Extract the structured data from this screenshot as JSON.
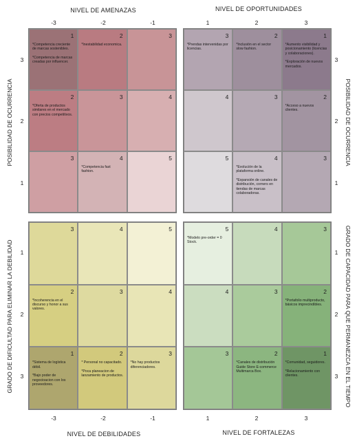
{
  "top_left_title": "NIVEL DE AMENAZAS",
  "top_right_title": "NIVEL DE OPORTUNIDADES",
  "bottom_left_title": "NIVEL DE DEBILIDADES",
  "bottom_right_title": "NIVEL DE FORTALEZAS",
  "left_upper_title": "POSIBILIDAD DE OCURRENCIA",
  "left_lower_title": "GRADO DE DIFICULTAD PARA ELIMINAR LA DEBILIDAD",
  "right_upper_title": "POSIBILIDAD DE OCURRENCIA",
  "right_lower_title": "GRADO DE CAPACIDAD PARA QUE PERMANEZCA EN EL TIEMPO",
  "ticks": {
    "top_left": [
      "-3",
      "-2",
      "-1"
    ],
    "top_right": [
      "1",
      "2",
      "3"
    ],
    "bottom_left": [
      "-3",
      "-2",
      "-1"
    ],
    "bottom_right": [
      "1",
      "2",
      "3"
    ],
    "left_upper": [
      "3",
      "2",
      "1"
    ],
    "left_lower": [
      "1",
      "2",
      "3"
    ],
    "right_upper": [
      "3",
      "2",
      "1"
    ],
    "right_lower": [
      "1",
      "2",
      "3"
    ]
  },
  "quadrants": {
    "amenazas": [
      {
        "n": "1",
        "bg": "#9b7276",
        "items": [
          "*Competencia creciente de marcas sostenibles.",
          "*Competencia de marcas creadas por influencer."
        ]
      },
      {
        "n": "2",
        "bg": "#b97b81",
        "items": [
          "*Inestabilidad economica."
        ]
      },
      {
        "n": "3",
        "bg": "#c89497",
        "items": []
      },
      {
        "n": "2",
        "bg": "#bc7d83",
        "items": [
          "*Oferta de productos similares en el mercado con precios competitivos."
        ]
      },
      {
        "n": "3",
        "bg": "#c99599",
        "items": []
      },
      {
        "n": "4",
        "bg": "#d7afb1",
        "items": []
      },
      {
        "n": "3",
        "bg": "#cf9fa3",
        "items": []
      },
      {
        "n": "4",
        "bg": "#d3b3b5",
        "items": [
          "*Competencia fast fashion."
        ]
      },
      {
        "n": "5",
        "bg": "#ead4d5",
        "items": []
      }
    ],
    "oportunidades": [
      {
        "n": "3",
        "bg": "#b3a5b1",
        "items": [
          "*Prendas intervenidas por licencias."
        ]
      },
      {
        "n": "2",
        "bg": "#9e8f9d",
        "items": [
          "*Inclusión en el sector slow fashion."
        ]
      },
      {
        "n": "1",
        "bg": "#8c7a8c",
        "items": [
          "*Aumento visibilidad y posicionamiento (licencias y colaboraciones).",
          "*Exploración de nuevos mercados."
        ]
      },
      {
        "n": "4",
        "bg": "#cfc7cd",
        "items": []
      },
      {
        "n": "3",
        "bg": "#b5a9b4",
        "items": []
      },
      {
        "n": "2",
        "bg": "#a294a1",
        "items": [
          "*Acceso a nuevos clientes."
        ]
      },
      {
        "n": "5",
        "bg": "#dedbde",
        "items": []
      },
      {
        "n": "4",
        "bg": "#c9c0c8",
        "items": [
          "*Evolución de la plataforma online.",
          "*Expansión de canales de distribución, corners en tiendas de marcas colaboradoras."
        ]
      },
      {
        "n": "3",
        "bg": "#b4a8b3",
        "items": []
      }
    ],
    "debilidades": [
      {
        "n": "3",
        "bg": "#ded99a",
        "items": []
      },
      {
        "n": "4",
        "bg": "#e9e6b8",
        "items": []
      },
      {
        "n": "5",
        "bg": "#f3f1d5",
        "items": []
      },
      {
        "n": "2",
        "bg": "#d6cf82",
        "items": [
          "*Incoherencia en el discurso y honor a sus valores."
        ]
      },
      {
        "n": "3",
        "bg": "#dedaa0",
        "items": []
      },
      {
        "n": "4",
        "bg": "#e8e5b6",
        "items": []
      },
      {
        "n": "1",
        "bg": "#aea66e",
        "items": [
          "*Sistema de logística débil.",
          "*Bajo poder de negocioacion con los proveedores."
        ]
      },
      {
        "n": "2",
        "bg": "#d2c97c",
        "items": [
          "* Personal no capacitado.",
          "*Poca planeacion de lanzamiento de productos."
        ]
      },
      {
        "n": "3",
        "bg": "#ddd89c",
        "items": [
          "*No hay productos diferenciadores."
        ]
      }
    ],
    "fortalezas": [
      {
        "n": "5",
        "bg": "#e6efe0",
        "items": [
          "*Modelo pre-order = 0 Stock."
        ]
      },
      {
        "n": "4",
        "bg": "#c7dbbc",
        "items": []
      },
      {
        "n": "3",
        "bg": "#a6c898",
        "items": []
      },
      {
        "n": "4",
        "bg": "#cbddc0",
        "items": []
      },
      {
        "n": "3",
        "bg": "#aacb9c",
        "items": []
      },
      {
        "n": "2",
        "bg": "#86b27a",
        "items": [
          "*Portafolio multiproducto, básicos imprecindibles."
        ]
      },
      {
        "n": "3",
        "bg": "#a4c797",
        "items": []
      },
      {
        "n": "2",
        "bg": "#8cb680",
        "items": [
          "*Canales de distribución Guide Store E-commerce Multimarca Box."
        ]
      },
      {
        "n": "1",
        "bg": "#6f9565",
        "items": [
          "*Comunidad, seguidores.",
          "*Relacionamiento con clientes."
        ]
      }
    ]
  }
}
